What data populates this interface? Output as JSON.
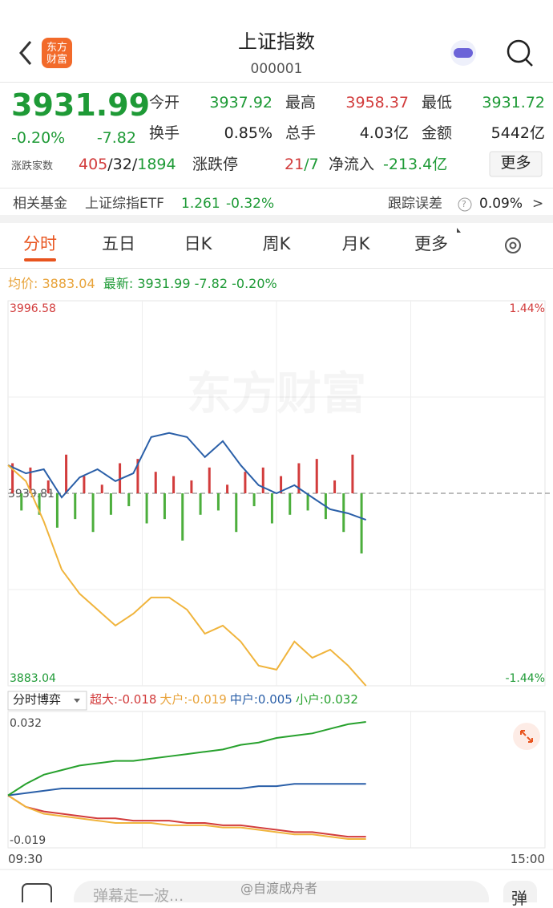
{
  "header": {
    "logo": [
      "东方",
      "财富"
    ],
    "title": "上证指数",
    "code": "000001"
  },
  "quote": {
    "price": "3931.99",
    "pct": "-0.20%",
    "change": "-7.82",
    "open_label": "今开",
    "open": "3937.92",
    "high_label": "最高",
    "high": "3958.37",
    "low_label": "最低",
    "low": "3931.72",
    "turnover_label": "换手",
    "turnover": "0.85%",
    "volume_label": "总手",
    "volume": "4.03亿",
    "amount_label": "金额",
    "amount": "5442亿",
    "breadth_label": "涨跌家数",
    "breadth_up": "405",
    "breadth_flat": "/32/",
    "breadth_down": "1894",
    "limit_label": "涨跌停",
    "limit_up": "21",
    "limit_down": "/7",
    "inflow_label": "净流入",
    "inflow": "-213.4亿",
    "more": "更多"
  },
  "fund": {
    "label": "相关基金",
    "name": "上证综指ETF",
    "price": "1.261",
    "pct": "-0.32%",
    "error_label": "跟踪误差",
    "error_help": "?",
    "error": "0.09%",
    "arrow": ">"
  },
  "tabs": [
    "分时",
    "五日",
    "日K",
    "周K",
    "月K",
    "更多"
  ],
  "minute_chart": {
    "avg_label": "均价:",
    "latest_label": "最新:",
    "latest_change": "-7.82",
    "latest_pct": "-0.20%",
    "watermark": "东方财富",
    "ylim": [
      3883.04,
      3996.58
    ],
    "prev_close": 3939.81,
    "right_top": "1.44%",
    "right_bottom": "-1.44%",
    "xlim": [
      0,
      240
    ],
    "x": [
      0,
      8,
      16,
      24,
      32,
      40,
      48,
      56,
      64,
      72,
      80,
      88,
      96,
      104,
      112,
      120,
      128,
      136,
      144,
      152,
      160
    ],
    "series": [
      {
        "name": "price",
        "color": "#2a5fa8",
        "values": [
          3948.1,
          3945.7,
          3946.9,
          3938.6,
          3944.5,
          3946.9,
          3943.4,
          3945.7,
          3956.4,
          3957.6,
          3956.4,
          3950.5,
          3955.2,
          3948.1,
          3942.2,
          3939.8,
          3942.2,
          3938.6,
          3935.1,
          3933.9,
          3931.99
        ]
      },
      {
        "name": "average",
        "color": "#f0b43c",
        "values": [
          3948.1,
          3943.4,
          3931.5,
          3917.3,
          3910.2,
          3905.5,
          3900.8,
          3904.3,
          3909.1,
          3909.1,
          3905.5,
          3898.4,
          3900.8,
          3896.1,
          3889.0,
          3887.8,
          3896.1,
          3891.3,
          3893.7,
          3889.0,
          3883.04
        ]
      }
    ],
    "bar_x": [
      2,
      6,
      10,
      14,
      18,
      22,
      26,
      30,
      34,
      38,
      42,
      46,
      50,
      54,
      58,
      62,
      66,
      70,
      74,
      78,
      82,
      86,
      90,
      94,
      98,
      102,
      106,
      110,
      114,
      118,
      122,
      126,
      130,
      134,
      138,
      142,
      146,
      150,
      154,
      158
    ],
    "bars": [
      35,
      -20,
      30,
      -25,
      15,
      -40,
      45,
      -30,
      20,
      -45,
      10,
      -25,
      35,
      -15,
      40,
      -35,
      25,
      -30,
      20,
      -55,
      15,
      -25,
      30,
      -20,
      10,
      -45,
      25,
      -15,
      30,
      -35,
      20,
      -25,
      35,
      -20,
      40,
      -30,
      15,
      -45,
      45,
      -70
    ],
    "bar_colors": {
      "up": "#d23c3c",
      "down": "#4cae3c"
    }
  },
  "flow_chart": {
    "label": "分时博弈",
    "ylim": [
      -0.019,
      0.032
    ],
    "xlim": [
      0,
      240
    ],
    "x": [
      0,
      8,
      16,
      24,
      32,
      40,
      48,
      56,
      64,
      72,
      80,
      88,
      96,
      104,
      112,
      120,
      128,
      136,
      144,
      152,
      160
    ],
    "time_start": "09:30",
    "time_end": "15:00",
    "series": [
      {
        "name": "超大:",
        "color": "#d23c3c",
        "values": [
          0,
          -0.005,
          -0.007,
          -0.008,
          -0.009,
          -0.01,
          -0.01,
          -0.011,
          -0.011,
          -0.011,
          -0.012,
          -0.012,
          -0.013,
          -0.013,
          -0.014,
          -0.015,
          -0.016,
          -0.016,
          -0.017,
          -0.018,
          -0.018
        ]
      },
      {
        "name": "大户:",
        "color": "#f0b43c",
        "values": [
          0,
          -0.005,
          -0.008,
          -0.009,
          -0.01,
          -0.011,
          -0.012,
          -0.012,
          -0.012,
          -0.013,
          -0.013,
          -0.013,
          -0.014,
          -0.014,
          -0.015,
          -0.016,
          -0.017,
          -0.017,
          -0.018,
          -0.019,
          -0.019
        ]
      },
      {
        "name": "中户:",
        "color": "#2a5fa8",
        "values": [
          0,
          0.001,
          0.002,
          0.003,
          0.003,
          0.003,
          0.003,
          0.003,
          0.003,
          0.003,
          0.003,
          0.003,
          0.003,
          0.003,
          0.004,
          0.004,
          0.005,
          0.005,
          0.005,
          0.005,
          0.005
        ]
      },
      {
        "name": "小户:",
        "color": "#27a12d",
        "values": [
          0,
          0.005,
          0.009,
          0.011,
          0.013,
          0.014,
          0.015,
          0.015,
          0.016,
          0.017,
          0.018,
          0.019,
          0.02,
          0.022,
          0.023,
          0.025,
          0.026,
          0.027,
          0.029,
          0.031,
          0.032
        ]
      }
    ]
  },
  "footer": {
    "input": "弹幕走一波...",
    "button": "弹",
    "credit": "@自渡成舟者"
  }
}
